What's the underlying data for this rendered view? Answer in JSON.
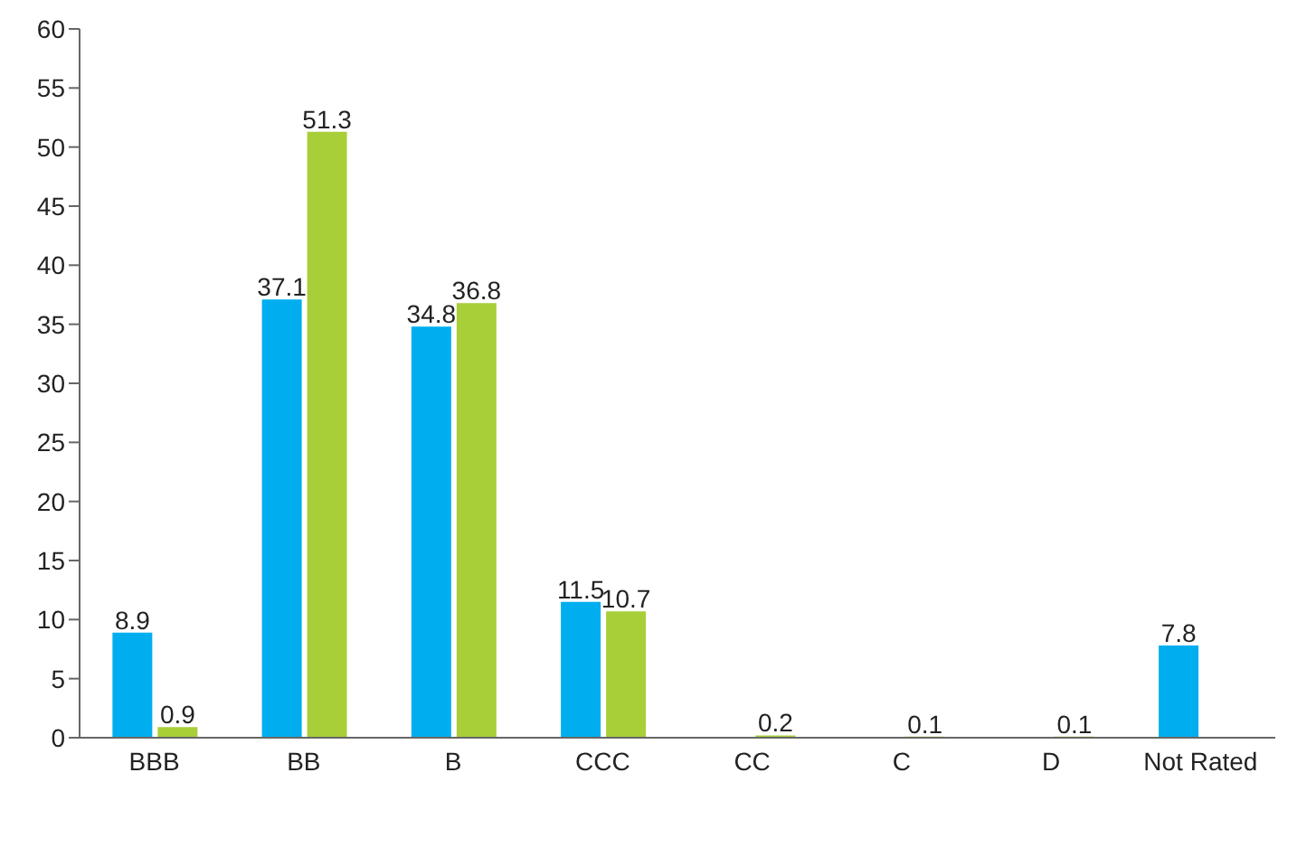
{
  "chart_data": {
    "type": "bar",
    "categories": [
      "BBB",
      "BB",
      "B",
      "CCC",
      "CC",
      "C",
      "D",
      "Not Rated"
    ],
    "series": [
      {
        "color": "#00aeef",
        "values": [
          8.9,
          37.1,
          34.8,
          11.5,
          null,
          null,
          null,
          7.8
        ]
      },
      {
        "color": "#a8cf38",
        "values": [
          0.9,
          51.3,
          36.8,
          10.7,
          0.2,
          0.1,
          0.1,
          null
        ]
      }
    ],
    "ylim": [
      0,
      60
    ],
    "yticks": [
      0,
      5,
      10,
      15,
      20,
      25,
      30,
      35,
      40,
      45,
      50,
      55,
      60
    ],
    "data_labels": true,
    "grid": false,
    "legend": false
  }
}
